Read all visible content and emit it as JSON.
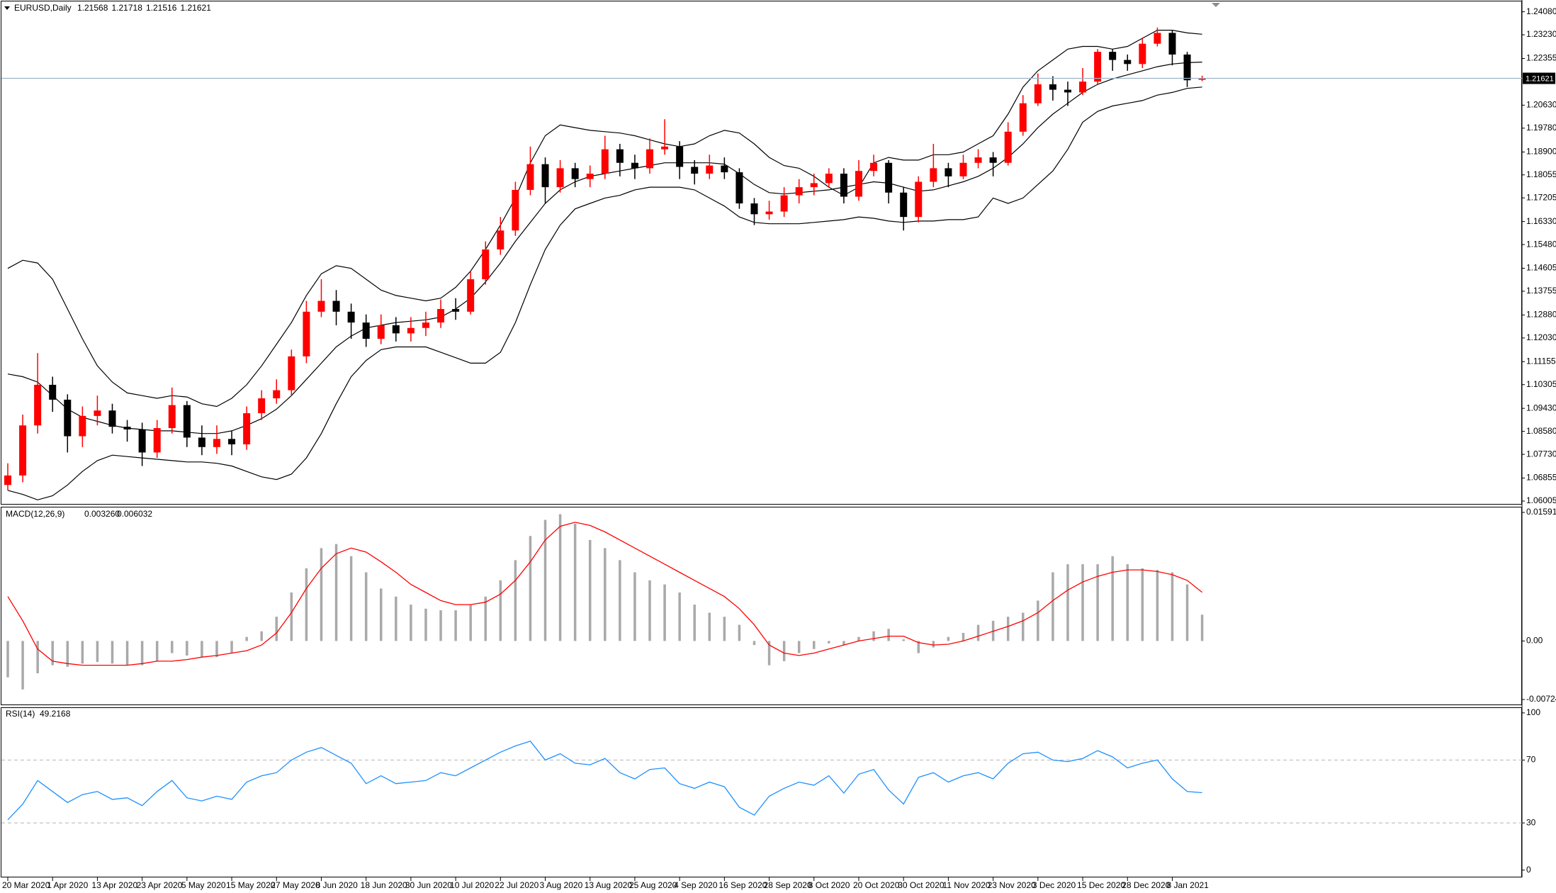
{
  "chart_data": [
    {
      "type": "candlestick",
      "symbol": "EURUSD,Daily",
      "categories": [
        "20 Mar 2020",
        null,
        null,
        "1 Apr 2020",
        null,
        null,
        "13 Apr 2020",
        null,
        null,
        "23 Apr 2020",
        null,
        null,
        "5 May 2020",
        null,
        null,
        "15 May 2020",
        null,
        null,
        "27 May 2020",
        null,
        null,
        "8 Jun 2020",
        null,
        null,
        "18 Jun 2020",
        null,
        null,
        "30 Jun 2020",
        null,
        null,
        "10 Jul 2020",
        null,
        null,
        "22 Jul 2020",
        null,
        null,
        "3 Aug 2020",
        null,
        null,
        "13 Aug 2020",
        null,
        null,
        "25 Aug 2020",
        null,
        null,
        "4 Sep 2020",
        null,
        null,
        "16 Sep 2020",
        null,
        null,
        "28 Sep 2020",
        null,
        null,
        "8 Oct 2020",
        null,
        null,
        "20 Oct 2020",
        null,
        null,
        "30 Oct 2020",
        null,
        null,
        "11 Nov 2020",
        null,
        null,
        "23 Nov 2020",
        null,
        null,
        "3 Dec 2020",
        null,
        null,
        "15 Dec 2020",
        null,
        null,
        "28 Dec 2020",
        null,
        null,
        "8 Jan 2021",
        null,
        null
      ],
      "open": [
        1.066,
        1.0695,
        1.088,
        1.103,
        1.0975,
        1.084,
        1.0915,
        1.0935,
        1.0875,
        1.0865,
        1.078,
        1.087,
        1.0955,
        1.0835,
        1.08,
        1.083,
        1.081,
        1.0925,
        1.098,
        1.101,
        1.1135,
        1.13,
        1.134,
        1.13,
        1.126,
        1.12,
        1.125,
        1.122,
        1.124,
        1.126,
        1.131,
        1.13,
        1.142,
        1.153,
        1.16,
        1.175,
        1.1845,
        1.176,
        1.183,
        1.179,
        1.181,
        1.19,
        1.185,
        1.183,
        1.19,
        1.191,
        1.1835,
        1.181,
        1.184,
        1.1815,
        1.17,
        1.166,
        1.167,
        1.173,
        1.176,
        1.1775,
        1.181,
        1.1725,
        1.182,
        1.185,
        1.174,
        1.165,
        1.178,
        1.183,
        1.18,
        1.185,
        1.187,
        1.185,
        1.1965,
        1.207,
        1.214,
        1.212,
        1.211,
        1.215,
        1.226,
        1.223,
        1.2215,
        1.229,
        1.233,
        1.225,
        1.21568
      ],
      "high": [
        1.074,
        1.092,
        1.1147,
        1.106,
        1.0995,
        1.095,
        1.099,
        1.096,
        1.09,
        1.089,
        1.09,
        1.102,
        1.097,
        1.088,
        1.088,
        1.086,
        1.095,
        1.101,
        1.105,
        1.116,
        1.134,
        1.142,
        1.138,
        1.133,
        1.129,
        1.129,
        1.128,
        1.128,
        1.13,
        1.1345,
        1.135,
        1.145,
        1.156,
        1.165,
        1.178,
        1.191,
        1.187,
        1.186,
        1.185,
        1.184,
        1.195,
        1.192,
        1.188,
        1.194,
        1.2011,
        1.193,
        1.186,
        1.188,
        1.187,
        1.183,
        1.172,
        1.171,
        1.176,
        1.179,
        1.181,
        1.183,
        1.183,
        1.186,
        1.188,
        1.186,
        1.176,
        1.18,
        1.192,
        1.185,
        1.188,
        1.19,
        1.189,
        1.2,
        1.21,
        1.218,
        1.217,
        1.215,
        1.22,
        1.227,
        1.227,
        1.225,
        1.231,
        1.235,
        1.234,
        1.226,
        1.21718
      ],
      "low": [
        1.064,
        1.067,
        1.085,
        1.093,
        1.078,
        1.08,
        1.088,
        1.085,
        1.082,
        1.073,
        1.076,
        1.085,
        1.08,
        1.077,
        1.0775,
        1.077,
        1.079,
        1.09,
        1.096,
        1.099,
        1.111,
        1.128,
        1.125,
        1.12,
        1.117,
        1.118,
        1.119,
        1.119,
        1.121,
        1.124,
        1.127,
        1.129,
        1.14,
        1.151,
        1.158,
        1.173,
        1.17,
        1.174,
        1.176,
        1.176,
        1.179,
        1.18,
        1.179,
        1.181,
        1.188,
        1.179,
        1.177,
        1.179,
        1.179,
        1.168,
        1.162,
        1.164,
        1.165,
        1.17,
        1.173,
        1.176,
        1.17,
        1.171,
        1.18,
        1.17,
        1.16,
        1.163,
        1.176,
        1.176,
        1.179,
        1.183,
        1.18,
        1.184,
        1.195,
        1.206,
        1.208,
        1.206,
        1.21,
        1.214,
        1.219,
        1.219,
        1.22,
        1.228,
        1.221,
        1.213,
        1.21516
      ],
      "close": [
        1.0695,
        1.088,
        1.103,
        1.0975,
        1.084,
        1.0915,
        1.0935,
        1.0875,
        1.0865,
        1.078,
        1.087,
        1.0955,
        1.0835,
        1.08,
        1.083,
        1.081,
        1.0925,
        1.098,
        1.101,
        1.1135,
        1.13,
        1.134,
        1.13,
        1.126,
        1.12,
        1.125,
        1.122,
        1.124,
        1.126,
        1.131,
        1.13,
        1.142,
        1.153,
        1.16,
        1.175,
        1.1845,
        1.176,
        1.183,
        1.179,
        1.181,
        1.19,
        1.185,
        1.183,
        1.19,
        1.191,
        1.1835,
        1.181,
        1.184,
        1.1815,
        1.17,
        1.166,
        1.167,
        1.173,
        1.176,
        1.1775,
        1.181,
        1.1725,
        1.182,
        1.185,
        1.174,
        1.165,
        1.178,
        1.183,
        1.18,
        1.185,
        1.187,
        1.185,
        1.1965,
        1.207,
        1.214,
        1.212,
        1.211,
        1.215,
        1.226,
        1.223,
        1.2215,
        1.229,
        1.233,
        1.225,
        1.2155,
        1.21621
      ],
      "up_color": "#ff0000",
      "down_color": "#000000",
      "bands": {
        "color": "#000000",
        "upper": [
          1.146,
          1.149,
          1.148,
          1.142,
          1.131,
          1.12,
          1.11,
          1.104,
          1.1,
          1.099,
          1.098,
          1.099,
          1.0985,
          1.096,
          1.095,
          1.098,
          1.103,
          1.11,
          1.118,
          1.126,
          1.136,
          1.144,
          1.147,
          1.146,
          1.142,
          1.138,
          1.136,
          1.135,
          1.134,
          1.135,
          1.139,
          1.145,
          1.153,
          1.162,
          1.172,
          1.185,
          1.195,
          1.199,
          1.198,
          1.197,
          1.1965,
          1.196,
          1.195,
          1.1935,
          1.192,
          1.191,
          1.192,
          1.195,
          1.197,
          1.196,
          1.192,
          1.187,
          1.184,
          1.183,
          1.18,
          1.176,
          1.173,
          1.176,
          1.185,
          1.187,
          1.186,
          1.186,
          1.188,
          1.188,
          1.189,
          1.192,
          1.195,
          1.203,
          1.213,
          1.219,
          1.223,
          1.227,
          1.228,
          1.228,
          1.227,
          1.228,
          1.231,
          1.234,
          1.234,
          1.233,
          1.2325
        ],
        "middle": [
          1.107,
          1.106,
          1.104,
          1.099,
          1.094,
          1.091,
          1.0895,
          1.088,
          1.087,
          1.0865,
          1.086,
          1.086,
          1.0855,
          1.085,
          1.085,
          1.086,
          1.088,
          1.0905,
          1.094,
          1.099,
          1.105,
          1.111,
          1.117,
          1.121,
          1.124,
          1.125,
          1.126,
          1.1265,
          1.127,
          1.128,
          1.131,
          1.135,
          1.141,
          1.148,
          1.156,
          1.163,
          1.17,
          1.175,
          1.178,
          1.18,
          1.181,
          1.182,
          1.183,
          1.184,
          1.185,
          1.185,
          1.185,
          1.185,
          1.1845,
          1.181,
          1.177,
          1.174,
          1.1735,
          1.174,
          1.1745,
          1.175,
          1.176,
          1.177,
          1.178,
          1.1775,
          1.176,
          1.1745,
          1.175,
          1.1765,
          1.178,
          1.18,
          1.183,
          1.187,
          1.192,
          1.198,
          1.203,
          1.207,
          1.211,
          1.214,
          1.216,
          1.2175,
          1.219,
          1.2205,
          1.2215,
          1.222,
          1.2222
        ],
        "lower": [
          1.064,
          1.0625,
          1.0605,
          1.062,
          1.066,
          1.071,
          1.075,
          1.077,
          1.0765,
          1.076,
          1.0755,
          1.075,
          1.0745,
          1.0745,
          1.074,
          1.073,
          1.071,
          1.069,
          1.068,
          1.07,
          1.076,
          1.085,
          1.096,
          1.106,
          1.112,
          1.116,
          1.117,
          1.117,
          1.117,
          1.115,
          1.113,
          1.111,
          1.111,
          1.115,
          1.126,
          1.14,
          1.153,
          1.162,
          1.168,
          1.17,
          1.172,
          1.173,
          1.175,
          1.176,
          1.176,
          1.176,
          1.175,
          1.172,
          1.169,
          1.165,
          1.163,
          1.1625,
          1.1625,
          1.1625,
          1.163,
          1.1635,
          1.164,
          1.165,
          1.1645,
          1.1635,
          1.163,
          1.1635,
          1.1635,
          1.164,
          1.164,
          1.165,
          1.172,
          1.17,
          1.172,
          1.177,
          1.182,
          1.19,
          1.2,
          1.204,
          1.206,
          1.207,
          1.208,
          1.21,
          1.211,
          1.2125,
          1.213
        ]
      },
      "price_line_color": "#9db3c8",
      "ylim": [
        1.059,
        1.2441
      ],
      "yticks": [
        {
          "value": 1.2408,
          "label": "1.24080"
        },
        {
          "value": 1.2323,
          "label": "1.23230"
        },
        1.22355,
        {
          "value": 1.2063,
          "label": "1.20630"
        },
        {
          "value": 1.1978,
          "label": "1.19780"
        },
        {
          "value": 1.189,
          "label": "1.18900"
        },
        1.18055,
        1.17205,
        {
          "value": 1.1633,
          "label": "1.16330"
        },
        {
          "value": 1.1548,
          "label": "1.15480"
        },
        1.14605,
        1.13755,
        {
          "value": 1.1288,
          "label": "1.12880"
        },
        {
          "value": 1.1203,
          "label": "1.12030"
        },
        1.11155,
        1.10305,
        {
          "value": 1.0943,
          "label": "1.09430"
        },
        {
          "value": 1.0858,
          "label": "1.08580"
        },
        {
          "value": 1.0773,
          "label": "1.07730"
        },
        1.06855,
        1.06005
      ]
    },
    {
      "type": "macd",
      "title": "MACD(12,26,9)",
      "readout": [
        {
          "value": 0.00326,
          "label": "0.003260"
        },
        0.006032
      ],
      "histogram": {
        "color": "#a9a9a9",
        "values": [
          -0.0045,
          -0.006,
          -0.004,
          -0.003,
          -0.0032,
          -0.0028,
          -0.0026,
          -0.0028,
          -0.003,
          -0.003,
          -0.0025,
          -0.0015,
          -0.0018,
          -0.002,
          -0.002,
          -0.0015,
          0.0005,
          0.0012,
          0.003,
          0.006,
          0.009,
          0.0115,
          0.012,
          0.0105,
          0.0085,
          0.0065,
          0.0055,
          0.0045,
          0.004,
          0.0038,
          0.0038,
          0.0045,
          0.0055,
          0.0075,
          0.01,
          0.013,
          0.015,
          0.0157,
          0.0145,
          0.0125,
          0.0115,
          0.01,
          0.0085,
          0.0075,
          0.007,
          0.006,
          0.0045,
          0.0035,
          0.003,
          0.002,
          -0.0005,
          -0.003,
          -0.0025,
          -0.0015,
          -0.001,
          -0.0003,
          -0.0005,
          0.0005,
          0.0012,
          0.0015,
          0.0002,
          -0.0015,
          -0.0008,
          0.0005,
          0.001,
          0.002,
          0.0025,
          0.003,
          0.0035,
          0.005,
          0.0085,
          0.0095,
          0.0095,
          0.0095,
          0.0105,
          0.0095,
          0.009,
          0.0088,
          0.0085,
          0.007,
          0.00326
        ]
      },
      "signal": {
        "color": "#ff0000",
        "values": [
          0.0055,
          0.0025,
          -0.001,
          -0.0025,
          -0.0028,
          -0.003,
          -0.003,
          -0.003,
          -0.003,
          -0.0028,
          -0.0025,
          -0.0025,
          -0.0023,
          -0.002,
          -0.0018,
          -0.0015,
          -0.0012,
          -0.0005,
          0.001,
          0.0035,
          0.0065,
          0.009,
          0.0108,
          0.0115,
          0.011,
          0.0098,
          0.0085,
          0.007,
          0.006,
          0.005,
          0.0045,
          0.0045,
          0.0048,
          0.0058,
          0.0075,
          0.0098,
          0.0125,
          0.0142,
          0.0147,
          0.0143,
          0.0135,
          0.0125,
          0.0115,
          0.0105,
          0.0095,
          0.0085,
          0.0075,
          0.0065,
          0.0055,
          0.004,
          0.002,
          -0.0005,
          -0.0015,
          -0.0018,
          -0.0015,
          -0.001,
          -0.0005,
          0,
          0.0003,
          0.0006,
          0.0006,
          -0.0002,
          -0.0005,
          -0.0004,
          0,
          0.0006,
          0.0012,
          0.0018,
          0.0025,
          0.0035,
          0.005,
          0.0063,
          0.0073,
          0.008,
          0.0085,
          0.0088,
          0.0088,
          0.0086,
          0.0082,
          0.0075,
          0.006032
        ]
      },
      "ylim": [
        -0.00786,
        0.01653
      ],
      "yticks": [
        0.015917,
        {
          "value": 0,
          "label": "0.00"
        },
        -0.007244
      ]
    },
    {
      "type": "line",
      "title": "RSI(14)",
      "color": "#1e90ff",
      "values": [
        32,
        42,
        57,
        50,
        43,
        48,
        50,
        45,
        46,
        41,
        50,
        57,
        46,
        44,
        47,
        45,
        56,
        60,
        62,
        70,
        75,
        78,
        73,
        68,
        55,
        60,
        55,
        56,
        57,
        62,
        60,
        65,
        70,
        75,
        79,
        82,
        70,
        74,
        68,
        67,
        71,
        62,
        58,
        64,
        65,
        55,
        52,
        56,
        53,
        40,
        35,
        47,
        52,
        56,
        54,
        60,
        49,
        61,
        64,
        51,
        42,
        59,
        62,
        56,
        60,
        62,
        58,
        68,
        74,
        75,
        70,
        69,
        71,
        76,
        72,
        65,
        68,
        70,
        58,
        50,
        49.2168
      ],
      "levels": [
        70,
        30
      ],
      "level_color": "#b4b4b4",
      "ylim": [
        -3.75,
        103.1
      ],
      "yticks": [
        100,
        70,
        30,
        0
      ]
    }
  ]
}
